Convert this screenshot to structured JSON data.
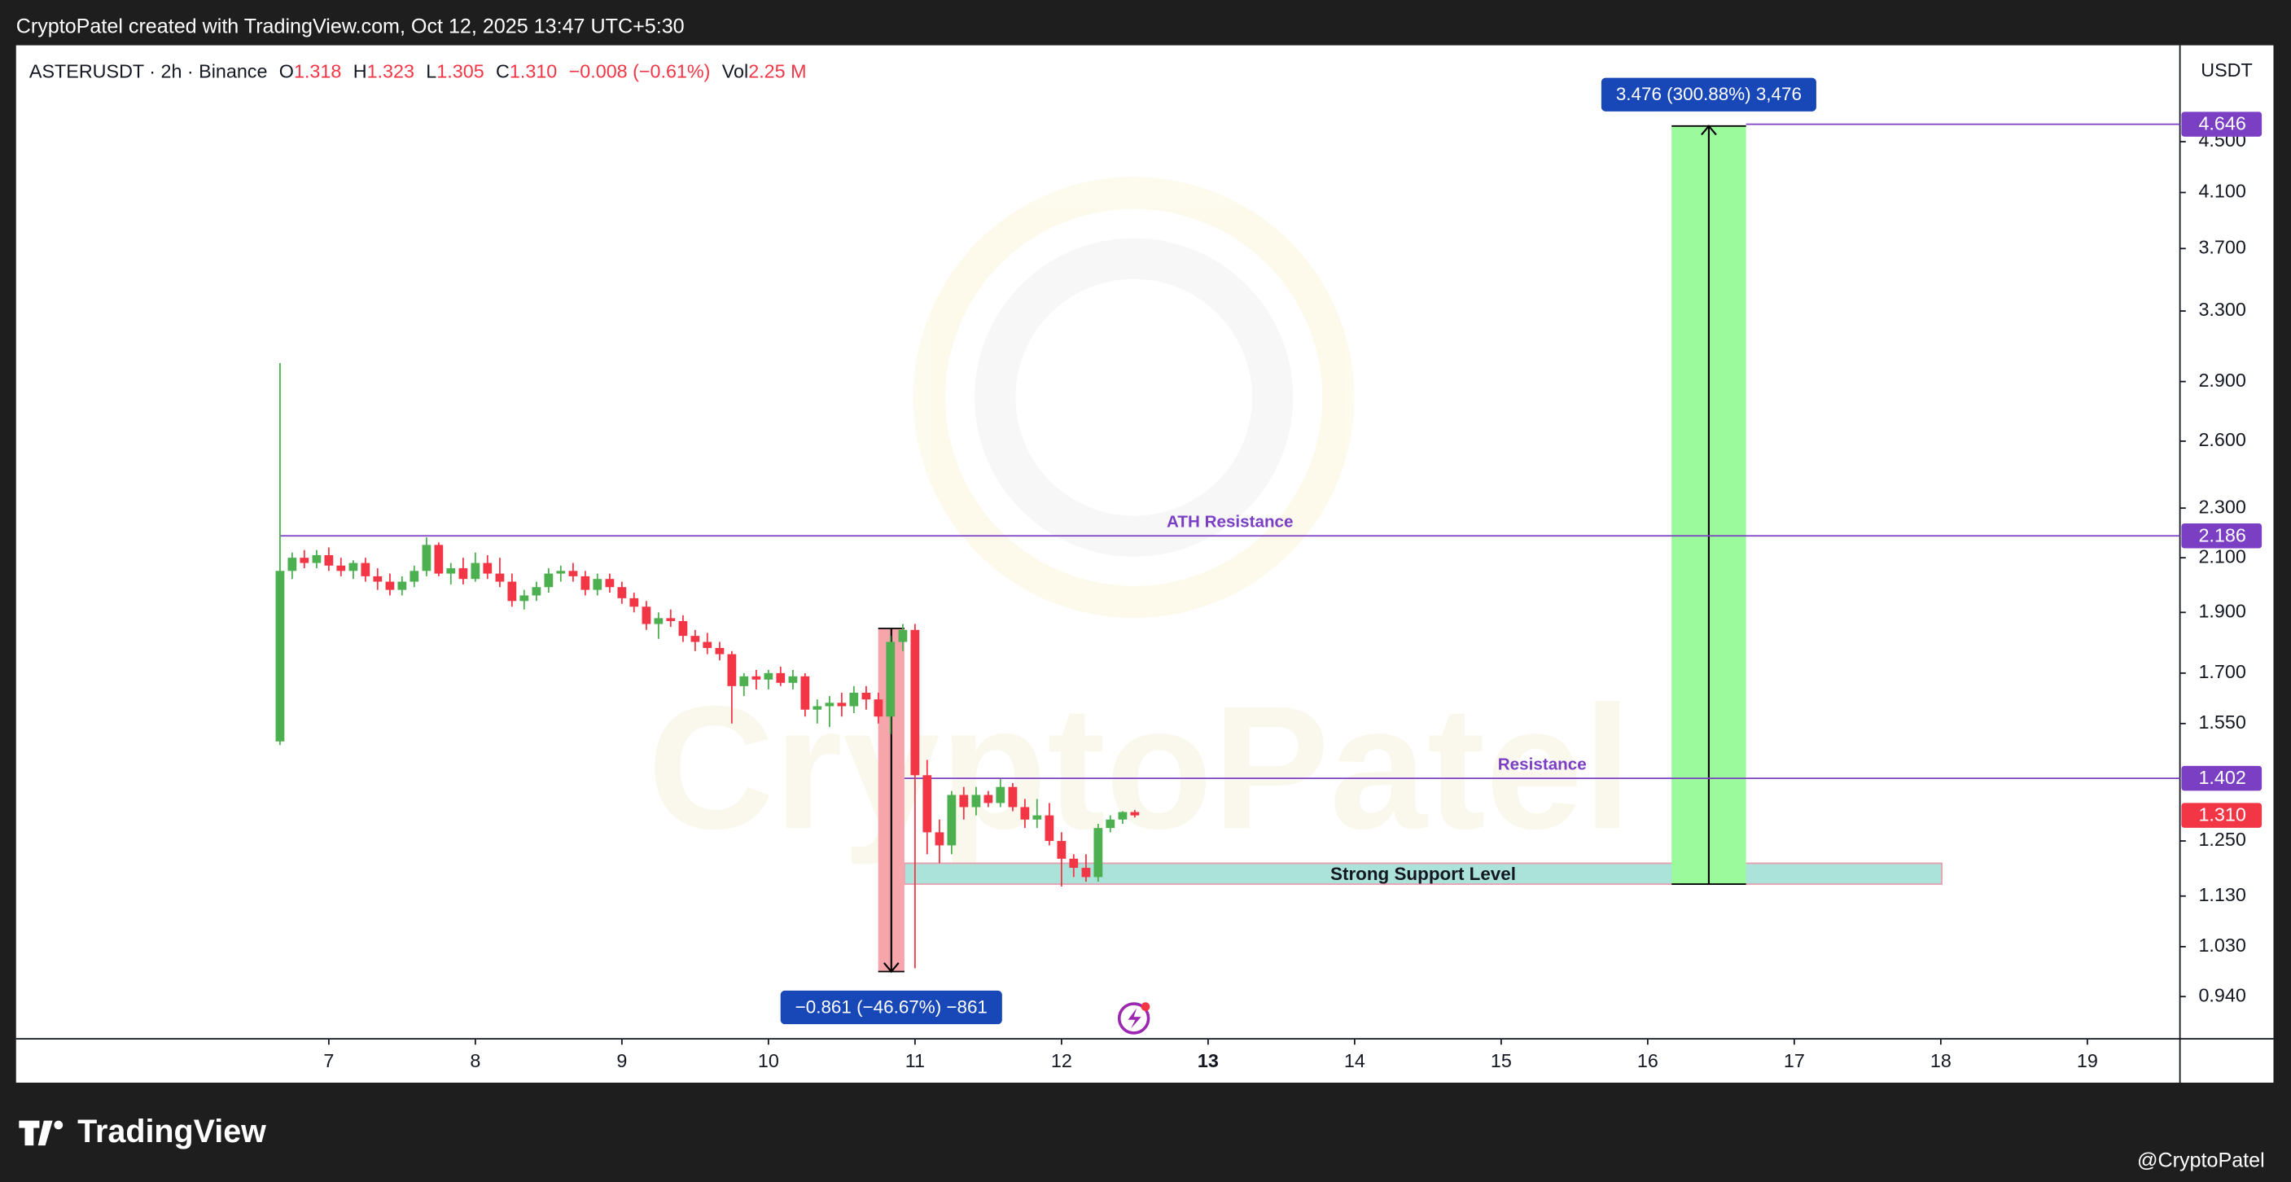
{
  "header": "CryptoPatel created with TradingView.com, Oct 12, 2025 13:47 UTC+5:30",
  "watermark": "CryptoPatel",
  "footer": {
    "brand": "TradingView",
    "credit": "@CryptoPatel"
  },
  "chart_data": {
    "type": "candlestick",
    "symbol": "ASTERUSDT · 2h · Binance",
    "ohlc": [
      {
        "key": "O",
        "value": 1.318
      },
      {
        "key": "H",
        "value": 1.323
      },
      {
        "key": "L",
        "value": 1.305
      },
      {
        "key": "C",
        "value": 1.31,
        "label": "1.310"
      }
    ],
    "change": "−0.008 (−0.61%)",
    "volume": {
      "key": "Vol",
      "value": "2.25 M"
    },
    "price_unit": "USDT",
    "up_color": "#4caf50",
    "down_color": "#f23645",
    "log_scale": true,
    "grid": false,
    "x": [
      6.667,
      6.75,
      6.833,
      6.917,
      7,
      7.083,
      7.167,
      7.25,
      7.333,
      7.417,
      7.5,
      7.583,
      7.667,
      7.75,
      7.833,
      7.917,
      8,
      8.083,
      8.167,
      8.25,
      8.333,
      8.417,
      8.5,
      8.583,
      8.667,
      8.75,
      8.833,
      8.917,
      9,
      9.083,
      9.167,
      9.25,
      9.333,
      9.417,
      9.5,
      9.583,
      9.667,
      9.75,
      9.833,
      9.917,
      10,
      10.083,
      10.167,
      10.25,
      10.333,
      10.417,
      10.5,
      10.583,
      10.667,
      10.75,
      10.833,
      10.917,
      11,
      11.083,
      11.167,
      11.25,
      11.333,
      11.417,
      11.5,
      11.583,
      11.667,
      11.75,
      11.833,
      11.917,
      12,
      12.083,
      12.167,
      12.25,
      12.333,
      12.417,
      12.5
    ],
    "open": [
      1.5,
      2.05,
      2.1,
      2.08,
      2.11,
      2.07,
      2.05,
      2.08,
      2.03,
      2.01,
      1.98,
      2.01,
      2.05,
      2.15,
      2.04,
      2.06,
      2.02,
      2.08,
      2.04,
      2.01,
      1.94,
      1.96,
      1.99,
      2.04,
      2.05,
      2.03,
      1.98,
      2.02,
      1.99,
      1.95,
      1.92,
      1.86,
      1.88,
      1.87,
      1.82,
      1.8,
      1.78,
      1.76,
      1.66,
      1.69,
      1.68,
      1.7,
      1.67,
      1.69,
      1.59,
      1.6,
      1.61,
      1.6,
      1.64,
      1.62,
      1.57,
      1.8,
      1.84,
      1.41,
      1.27,
      1.24,
      1.36,
      1.33,
      1.36,
      1.34,
      1.38,
      1.33,
      1.3,
      1.31,
      1.25,
      1.21,
      1.19,
      1.17,
      1.28,
      1.3,
      1.318
    ],
    "high": [
      3.0,
      2.12,
      2.13,
      2.13,
      2.14,
      2.1,
      2.09,
      2.1,
      2.06,
      2.04,
      2.03,
      2.07,
      2.18,
      2.16,
      2.08,
      2.1,
      2.12,
      2.11,
      2.1,
      2.04,
      1.98,
      2.01,
      2.06,
      2.07,
      2.08,
      2.05,
      2.04,
      2.04,
      2.01,
      1.97,
      1.94,
      1.9,
      1.91,
      1.89,
      1.84,
      1.83,
      1.8,
      1.77,
      1.7,
      1.71,
      1.71,
      1.72,
      1.71,
      1.7,
      1.62,
      1.63,
      1.64,
      1.66,
      1.66,
      1.64,
      1.82,
      1.86,
      1.86,
      1.45,
      1.3,
      1.37,
      1.38,
      1.38,
      1.37,
      1.4,
      1.39,
      1.35,
      1.35,
      1.34,
      1.27,
      1.22,
      1.22,
      1.29,
      1.31,
      1.32,
      1.323
    ],
    "low": [
      1.49,
      2.02,
      2.06,
      2.06,
      2.05,
      2.03,
      2.02,
      2.01,
      1.98,
      1.96,
      1.96,
      1.99,
      2.03,
      2.03,
      2.0,
      2.0,
      2.01,
      2.02,
      1.99,
      1.92,
      1.91,
      1.94,
      1.97,
      2.01,
      2.01,
      1.96,
      1.96,
      1.97,
      1.93,
      1.9,
      1.84,
      1.81,
      1.85,
      1.8,
      1.77,
      1.76,
      1.74,
      1.55,
      1.63,
      1.65,
      1.65,
      1.66,
      1.65,
      1.57,
      1.55,
      1.54,
      1.57,
      1.58,
      1.59,
      1.55,
      1.52,
      1.77,
      0.99,
      1.22,
      1.2,
      1.22,
      1.3,
      1.31,
      1.33,
      1.33,
      1.32,
      1.28,
      1.28,
      1.24,
      1.15,
      1.17,
      1.16,
      1.16,
      1.27,
      1.29,
      1.305
    ],
    "close": [
      2.05,
      2.1,
      2.08,
      2.11,
      2.07,
      2.05,
      2.08,
      2.03,
      2.01,
      1.98,
      2.01,
      2.05,
      2.15,
      2.04,
      2.06,
      2.02,
      2.08,
      2.04,
      2.01,
      1.94,
      1.96,
      1.99,
      2.04,
      2.05,
      2.03,
      1.98,
      2.02,
      1.99,
      1.95,
      1.92,
      1.86,
      1.88,
      1.87,
      1.82,
      1.8,
      1.78,
      1.76,
      1.66,
      1.69,
      1.68,
      1.7,
      1.67,
      1.69,
      1.59,
      1.6,
      1.61,
      1.6,
      1.64,
      1.62,
      1.57,
      1.8,
      1.84,
      1.41,
      1.27,
      1.24,
      1.36,
      1.33,
      1.36,
      1.34,
      1.38,
      1.33,
      1.3,
      1.31,
      1.25,
      1.21,
      1.19,
      1.17,
      1.28,
      1.3,
      1.318,
      1.31
    ],
    "xlim": [
      4.866,
      19.632
    ],
    "xticks": [
      7,
      8,
      9,
      10,
      11,
      12,
      13,
      14,
      15,
      16,
      17,
      18,
      19
    ],
    "bold_xtick": 13,
    "ylim": [
      0.87,
      5.369
    ],
    "yticks": [
      {
        "value": 0.94,
        "label": "0.940"
      },
      {
        "value": 1.03,
        "label": "1.030"
      },
      {
        "value": 1.13,
        "label": "1.130"
      },
      {
        "value": 1.25,
        "label": "1.250"
      },
      {
        "value": 1.55,
        "label": "1.550"
      },
      {
        "value": 1.7,
        "label": "1.700"
      },
      {
        "value": 1.9,
        "label": "1.900"
      },
      {
        "value": 2.1,
        "label": "2.100"
      },
      {
        "value": 2.3,
        "label": "2.300"
      },
      {
        "value": 2.6,
        "label": "2.600"
      },
      {
        "value": 2.9,
        "label": "2.900"
      },
      {
        "value": 3.3,
        "label": "3.300"
      },
      {
        "value": 3.7,
        "label": "3.700"
      },
      {
        "value": 4.1,
        "label": "4.100"
      },
      {
        "value": 4.5,
        "label": "4.500"
      }
    ],
    "lines": [
      {
        "label": "ATH Resistance",
        "value": 2.186,
        "value_label": "2.186",
        "x_from": 6.667,
        "color": "#7b3fc4"
      },
      {
        "label": "Resistance",
        "value": 1.402,
        "value_label": "1.402",
        "x_from": 10.928,
        "color": "#7b3fc4"
      },
      {
        "value": 4.646,
        "value_label": "4.646",
        "x_from": 16.671,
        "color": "#7b3fc4"
      }
    ],
    "zones": [
      {
        "label": "Strong Support Level",
        "from": 1.155,
        "to": 1.2,
        "x_from": 10.928,
        "x_to": 18.007,
        "color": "#8fd8cc"
      }
    ],
    "measures": [
      {
        "from": 1.155,
        "to": 4.631,
        "label": "3.476 (300.88%) 3,476",
        "x_from": 16.163,
        "x_to": 16.671,
        "color": "#9bfa9b"
      },
      {
        "from": 1.845,
        "to": 0.984,
        "label": "−0.861 (−46.67%) −861",
        "x_from": 10.749,
        "x_to": 10.928,
        "color": "#f6a5ab"
      }
    ],
    "last_price": {
      "value": 1.31,
      "label": "1.310"
    }
  }
}
